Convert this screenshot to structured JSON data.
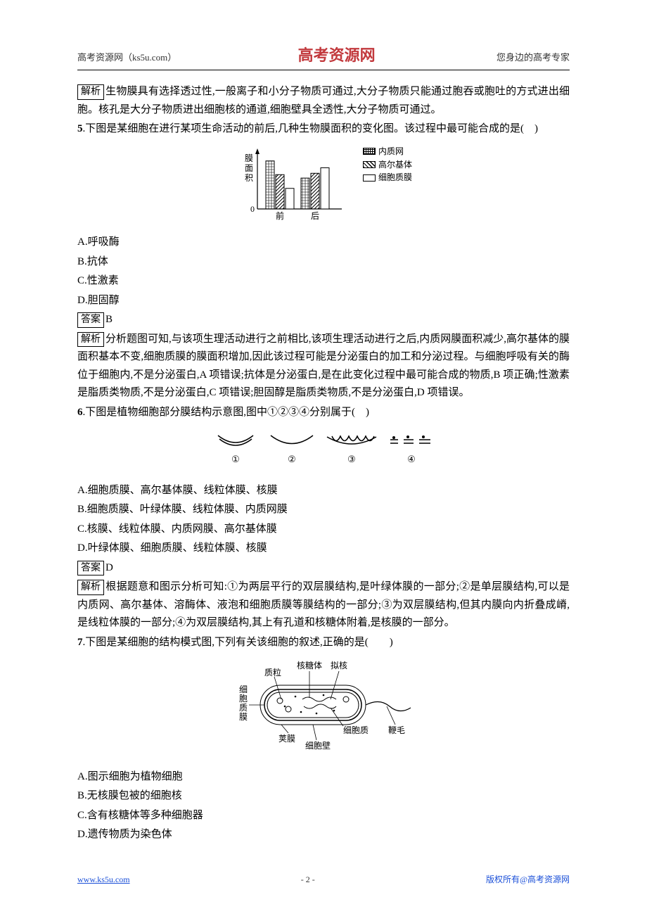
{
  "header": {
    "left": "高考资源网（ks5u.com）",
    "center": "高考资源网",
    "right": "您身边的高考专家"
  },
  "block1": {
    "tag": "解析",
    "text": "生物膜具有选择透过性,一般离子和小分子物质可通过,大分子物质只能通过胞吞或胞吐的方式进出细胞。核孔是大分子物质进出细胞核的通道,细胞壁具全透性,大分子物质可通过。"
  },
  "q5": {
    "num": "5",
    "stem": ".下图是某细胞在进行某项生命活动的前后,几种生物膜面积的变化图。该过程中最可能合成的是(　)",
    "chart": {
      "ylabel": "膜面积",
      "xlabels": [
        "前",
        "后"
      ],
      "legend": [
        "内质网",
        "高尔基体",
        "细胞质膜"
      ],
      "series": {
        "before": [
          70,
          50,
          30
        ],
        "after": [
          45,
          52,
          60
        ]
      },
      "axis_color": "#000",
      "bar_border": "#000"
    },
    "opts": {
      "A": "A.呼吸酶",
      "B": "B.抗体",
      "C": "C.性激素",
      "D": "D.胆固醇"
    },
    "ans_tag": "答案",
    "ans": "B",
    "exp_tag": "解析",
    "exp": "分析题图可知,与该项生理活动进行之前相比,该项生理活动进行之后,内质网膜面积减少,高尔基体的膜面积基本不变,细胞质膜的膜面积增加,因此该过程可能是分泌蛋白的加工和分泌过程。与细胞呼吸有关的酶位于细胞内,不是分泌蛋白,A 项错误;抗体是分泌蛋白,是在此变化过程中最可能合成的物质,B 项正确;性激素是脂质类物质,不是分泌蛋白,C 项错误;胆固醇是脂质类物质,不是分泌蛋白,D 项错误。"
  },
  "q6": {
    "num": "6",
    "stem": ".下图是植物细胞部分膜结构示意图,图中①②③④分别属于(　)",
    "fig_labels": [
      "①",
      "②",
      "③",
      "④"
    ],
    "opts": {
      "A": "A.细胞质膜、高尔基体膜、线粒体膜、核膜",
      "B": "B.细胞质膜、叶绿体膜、线粒体膜、内质网膜",
      "C": "C.核膜、线粒体膜、内质网膜、高尔基体膜",
      "D": "D.叶绿体膜、细胞质膜、线粒体膜、核膜"
    },
    "ans_tag": "答案",
    "ans": "D",
    "exp_tag": "解析",
    "exp": "根据题意和图示分析可知:①为两层平行的双层膜结构,是叶绿体膜的一部分;②是单层膜结构,可以是内质网、高尔基体、溶酶体、液泡和细胞质膜等膜结构的一部分;③为双层膜结构,但其内膜向内折叠成嵴,是线粒体膜的一部分;④为双层膜结构,其上有孔道和核糖体附着,是核膜的一部分。"
  },
  "q7": {
    "num": "7",
    "stem": ".下图是某细胞的结构模式图,下列有关该细胞的叙述,正确的是(　　)",
    "labels": {
      "ribosome": "核糖体",
      "nucleoid": "拟核",
      "plasmid": "质粒",
      "membrane_l1": "细",
      "membrane_l2": "胞",
      "membrane_l3": "质",
      "membrane_l4": "膜",
      "cytoplasm": "细胞质",
      "capsule": "荚膜",
      "wall": "细胞壁",
      "flagellum": "鞭毛"
    },
    "opts": {
      "A": "A.图示细胞为植物细胞",
      "B": "B.无核膜包被的细胞核",
      "C": "C.含有核糖体等多种细胞器",
      "D": "D.遗传物质为染色体"
    }
  },
  "footer": {
    "left": "www.ks5u.com",
    "center": "- 2 -",
    "right": "版权所有@高考资源网"
  }
}
